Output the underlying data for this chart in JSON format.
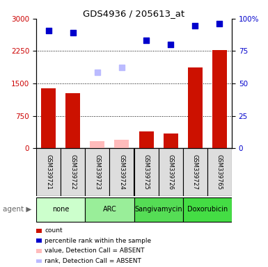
{
  "title": "GDS4936 / 205613_at",
  "samples": [
    "GSM339721",
    "GSM339722",
    "GSM339723",
    "GSM339724",
    "GSM339725",
    "GSM339726",
    "GSM339727",
    "GSM339765"
  ],
  "agents": [
    {
      "label": "none",
      "color": "#ccffcc",
      "samples": [
        0,
        1
      ]
    },
    {
      "label": "ARC",
      "color": "#99ee99",
      "samples": [
        2,
        3
      ]
    },
    {
      "label": "Sangivamycin",
      "color": "#55dd55",
      "samples": [
        4,
        5
      ]
    },
    {
      "label": "Doxorubicin",
      "color": "#44dd44",
      "samples": [
        6,
        7
      ]
    }
  ],
  "count_present": [
    1,
    1,
    0,
    0,
    1,
    1,
    1,
    1
  ],
  "count_values": [
    1380,
    1270,
    0,
    0,
    390,
    335,
    1870,
    2280
  ],
  "count_values_absent": [
    0,
    0,
    155,
    195,
    0,
    0,
    0,
    0
  ],
  "percentile_present": [
    1,
    1,
    0,
    0,
    1,
    1,
    1,
    1
  ],
  "percentile_values": [
    2720,
    2680,
    0,
    0,
    2500,
    2400,
    2840,
    2890
  ],
  "percentile_values_absent": [
    0,
    0,
    1750,
    1870,
    0,
    0,
    0,
    0
  ],
  "left_ylim": [
    0,
    3000
  ],
  "right_ylim": [
    0,
    100
  ],
  "left_yticks": [
    0,
    750,
    1500,
    2250,
    3000
  ],
  "right_yticks": [
    0,
    25,
    50,
    75,
    100
  ],
  "bar_color": "#cc1100",
  "bar_absent_color": "#ffbbbb",
  "dot_color": "#0000cc",
  "dot_absent_color": "#bbbbff",
  "legend": [
    {
      "label": "count",
      "color": "#cc1100"
    },
    {
      "label": "percentile rank within the sample",
      "color": "#0000cc"
    },
    {
      "label": "value, Detection Call = ABSENT",
      "color": "#ffbbbb"
    },
    {
      "label": "rank, Detection Call = ABSENT",
      "color": "#bbbbff"
    }
  ]
}
